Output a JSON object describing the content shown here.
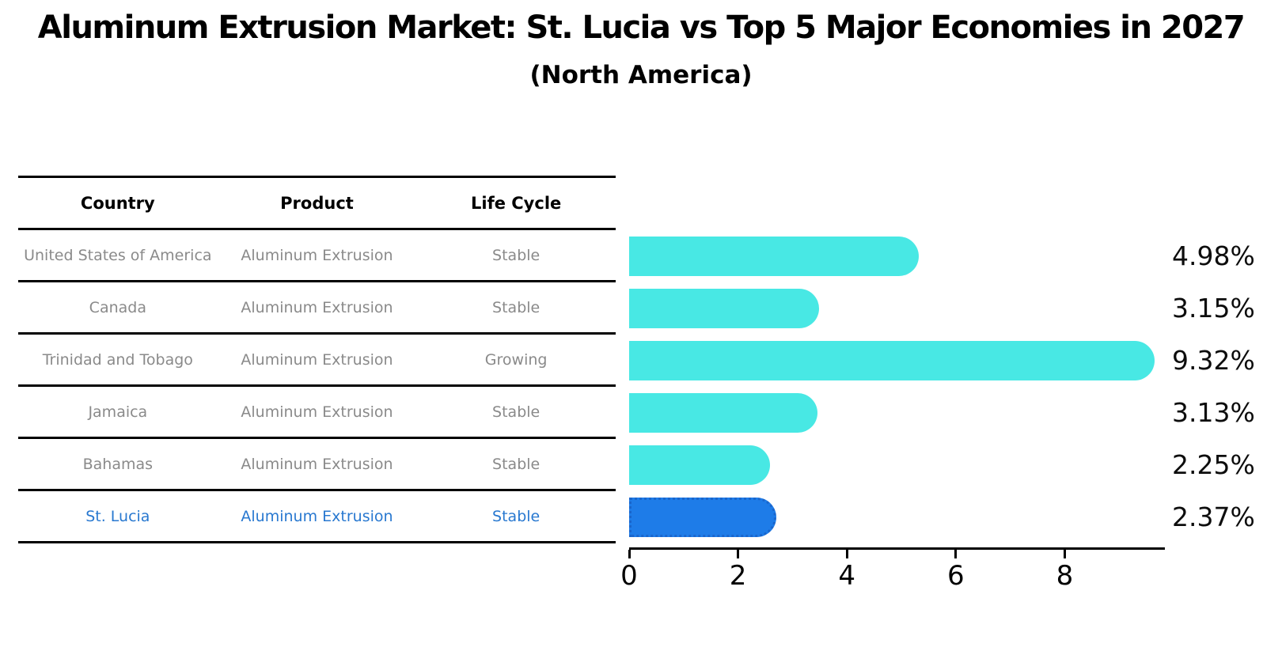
{
  "title": "Aluminum Extrusion Market: St. Lucia vs Top 5 Major Economies in 2027",
  "subtitle": "(North America)",
  "table": {
    "headers": [
      "Country",
      "Product",
      "Life Cycle"
    ],
    "rows": [
      {
        "country": "United States of America",
        "product": "Aluminum Extrusion",
        "life_cycle": "Stable"
      },
      {
        "country": "Canada",
        "product": "Aluminum Extrusion",
        "life_cycle": "Stable"
      },
      {
        "country": "Trinidad and Tobago",
        "product": "Aluminum Extrusion",
        "life_cycle": "Growing"
      },
      {
        "country": "Jamaica",
        "product": "Aluminum Extrusion",
        "life_cycle": "Stable"
      },
      {
        "country": "Bahamas",
        "product": "Aluminum Extrusion",
        "life_cycle": "Stable"
      },
      {
        "country": "St. Lucia",
        "product": "Aluminum Extrusion",
        "life_cycle": "Stable"
      }
    ]
  },
  "chart_data": {
    "type": "bar",
    "orientation": "horizontal",
    "categories": [
      "United States of America",
      "Canada",
      "Trinidad and Tobago",
      "Jamaica",
      "Bahamas",
      "St. Lucia"
    ],
    "values": [
      4.98,
      3.15,
      9.32,
      3.13,
      2.25,
      2.37
    ],
    "labels": [
      "4.98%",
      "3.15%",
      "9.32%",
      "3.13%",
      "2.25%",
      "2.37%"
    ],
    "x_ticks": [
      0,
      2,
      4,
      6,
      8
    ],
    "xlim": [
      0,
      9.8
    ],
    "grid": false,
    "highlight_index": 5,
    "bar_color": "#48e8e4",
    "highlight_color": "#1e7ce8",
    "highlight_border_color": "#1a66cc"
  },
  "colors": {
    "table_text": "#8a8a8a",
    "highlight_text": "#2878d0",
    "line": "#000000"
  }
}
